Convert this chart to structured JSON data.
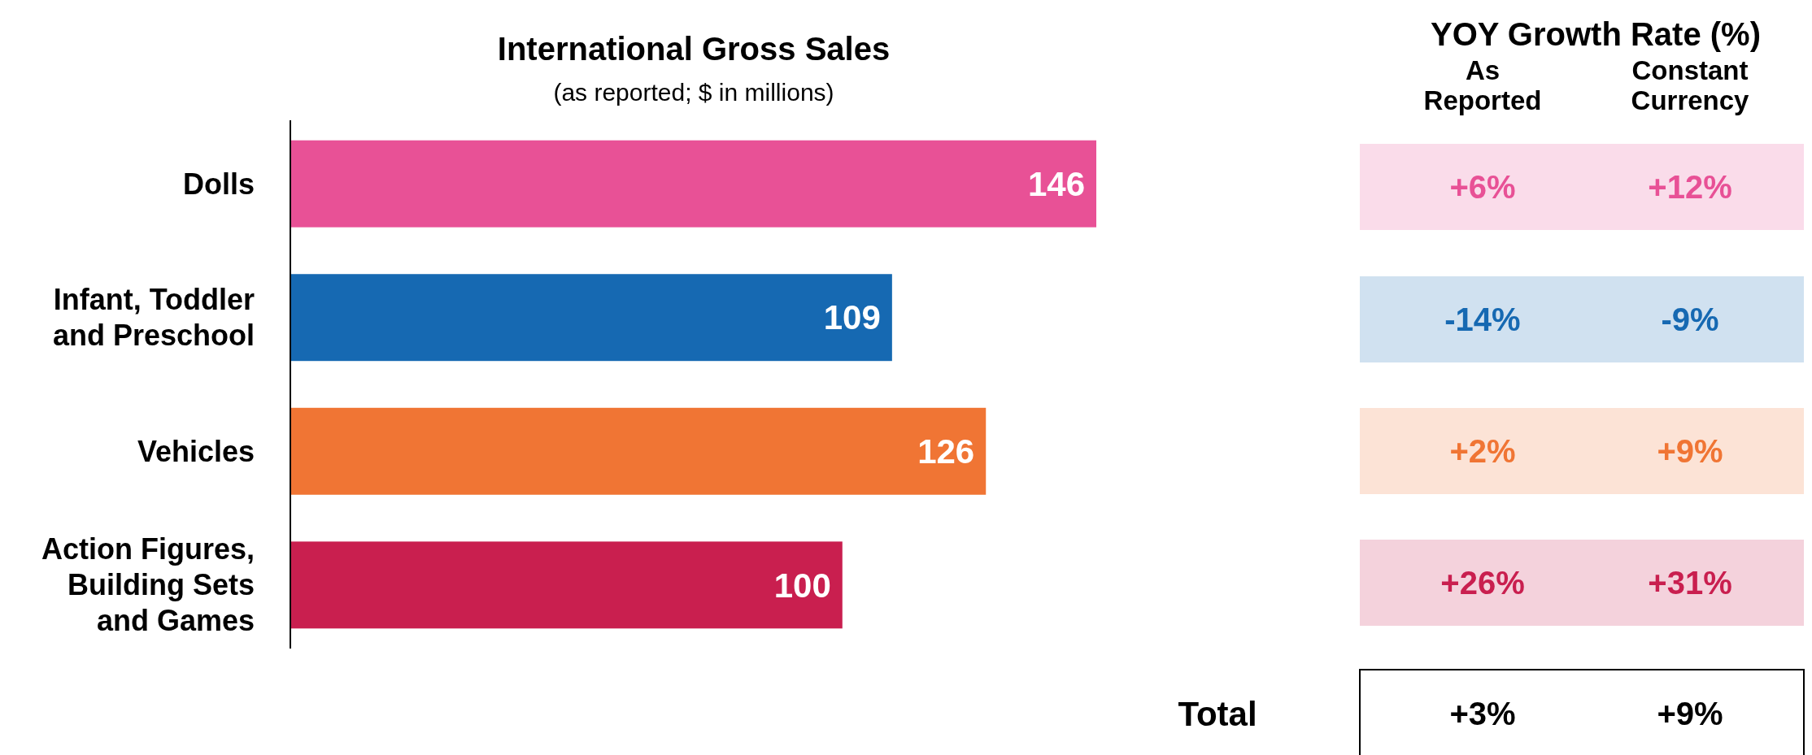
{
  "chart_data": [
    {
      "type": "bar",
      "orientation": "horizontal",
      "title": "International Gross Sales",
      "subtitle": "(as reported; $ in millions)",
      "categories": [
        "Dolls",
        "Infant, Toddler and Preschool",
        "Vehicles",
        "Action Figures, Building Sets and Games"
      ],
      "values": [
        146,
        109,
        126,
        100
      ],
      "colors": [
        "#e85196",
        "#1669b2",
        "#f07534",
        "#c91f4f"
      ],
      "data_labels": true
    },
    {
      "type": "other",
      "title": "YOY Growth Rate (%)",
      "categories": [
        "As Reported",
        "Constant Currency"
      ],
      "series": [
        {
          "color": "#e85196",
          "values": [
            6,
            12
          ],
          "value_labels": [
            "+6%",
            "+12%"
          ]
        },
        {
          "color": "#1669b2",
          "values": [
            -14,
            -9
          ],
          "value_labels": [
            "-14%",
            "-9%"
          ]
        },
        {
          "color": "#f07534",
          "values": [
            2,
            9
          ],
          "value_labels": [
            "+2%",
            "+9%"
          ]
        },
        {
          "color": "#c91f4f",
          "values": [
            26,
            31
          ],
          "value_labels": [
            "+26%",
            "+31%"
          ]
        },
        {
          "name": "Total",
          "color": "#000000",
          "values": [
            3,
            9
          ],
          "value_labels": [
            "+3%",
            "+9%"
          ]
        }
      ]
    }
  ]
}
